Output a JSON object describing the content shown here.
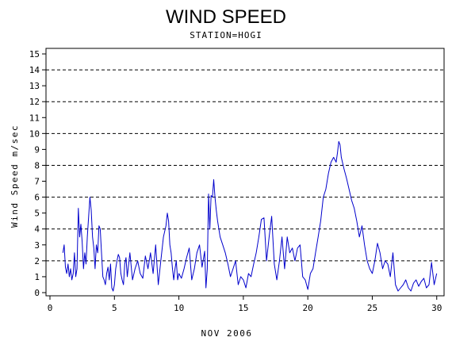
{
  "chart_data": {
    "type": "line",
    "title": "WIND SPEED",
    "subtitle": "STATION=HOGI",
    "xlabel": "NOV 2006",
    "ylabel": "Wind Speed m/sec",
    "xlim": [
      0,
      30.2
    ],
    "ylim": [
      0,
      15
    ],
    "x_ticks": [
      0,
      5,
      10,
      15,
      20,
      25,
      30
    ],
    "x_tick_labels": [
      "0",
      "5",
      "10",
      "15",
      "20",
      "25",
      "30"
    ],
    "y_ticks": [
      0,
      1,
      2,
      3,
      4,
      5,
      6,
      7,
      8,
      9,
      10,
      11,
      12,
      13,
      14,
      15
    ],
    "y_tick_labels": [
      "0",
      "1",
      "2",
      "3",
      "4",
      "5",
      "6",
      "7",
      "8",
      "9",
      "10",
      "11",
      "12",
      "13",
      "14",
      "15"
    ],
    "grid_lines_y": [
      2,
      4,
      6,
      8,
      10,
      12,
      14
    ],
    "grid": "dashed horizontal lines at even values",
    "series": [
      {
        "color": "#0000cc",
        "x": [
          1.0,
          1.1,
          1.2,
          1.3,
          1.4,
          1.5,
          1.6,
          1.7,
          1.8,
          1.9,
          2.0,
          2.1,
          2.2,
          2.3,
          2.4,
          2.5,
          2.6,
          2.7,
          2.8,
          2.9,
          3.0,
          3.1,
          3.2,
          3.3,
          3.4,
          3.5,
          3.6,
          3.7,
          3.8,
          3.9,
          4.0,
          4.1,
          4.2,
          4.3,
          4.4,
          4.5,
          4.6,
          4.7,
          4.8,
          4.9,
          5.0,
          5.1,
          5.2,
          5.3,
          5.4,
          5.5,
          5.6,
          5.7,
          5.8,
          5.9,
          6.0,
          6.2,
          6.4,
          6.6,
          6.8,
          7.0,
          7.2,
          7.4,
          7.6,
          7.8,
          8.0,
          8.2,
          8.4,
          8.6,
          8.8,
          9.0,
          9.1,
          9.2,
          9.3,
          9.4,
          9.5,
          9.6,
          9.7,
          9.8,
          9.9,
          10.0,
          10.2,
          10.4,
          10.6,
          10.8,
          11.0,
          11.2,
          11.4,
          11.6,
          11.8,
          12.0,
          12.1,
          12.2,
          12.3,
          12.4,
          12.5,
          12.6,
          12.7,
          12.8,
          12.9,
          13.0,
          13.2,
          13.4,
          13.6,
          13.8,
          14.0,
          14.2,
          14.4,
          14.6,
          14.8,
          15.0,
          15.2,
          15.4,
          15.6,
          15.8,
          16.0,
          16.2,
          16.4,
          16.6,
          16.8,
          17.0,
          17.2,
          17.4,
          17.6,
          17.8,
          18.0,
          18.2,
          18.4,
          18.6,
          18.8,
          19.0,
          19.2,
          19.4,
          19.6,
          19.8,
          20.0,
          20.2,
          20.4,
          20.6,
          20.8,
          21.0,
          21.2,
          21.4,
          21.6,
          21.8,
          22.0,
          22.2,
          22.3,
          22.4,
          22.5,
          22.6,
          22.8,
          23.0,
          23.2,
          23.4,
          23.6,
          23.8,
          24.0,
          24.2,
          24.4,
          24.6,
          24.8,
          25.0,
          25.2,
          25.4,
          25.6,
          25.8,
          26.0,
          26.2,
          26.4,
          26.6,
          26.8,
          27.0,
          27.2,
          27.4,
          27.6,
          27.8,
          28.0,
          28.2,
          28.4,
          28.6,
          28.8,
          29.0,
          29.2,
          29.4,
          29.6,
          29.8,
          30.0
        ],
        "values": [
          2.5,
          3.0,
          1.6,
          1.2,
          1.8,
          1.0,
          1.5,
          0.8,
          1.2,
          2.5,
          1.0,
          1.5,
          5.3,
          3.5,
          4.3,
          3.2,
          1.5,
          2.5,
          1.8,
          3.5,
          4.8,
          6.0,
          5.2,
          3.5,
          2.8,
          1.5,
          3.0,
          2.5,
          4.2,
          4.0,
          2.5,
          1.0,
          0.8,
          0.5,
          1.2,
          1.6,
          0.8,
          1.8,
          0.3,
          0.1,
          0.5,
          1.5,
          2.0,
          2.4,
          2.2,
          1.2,
          0.8,
          0.5,
          1.8,
          2.2,
          1.0,
          2.5,
          0.8,
          1.5,
          2.0,
          1.2,
          0.9,
          2.3,
          1.5,
          2.5,
          1.2,
          3.0,
          0.5,
          2.0,
          3.5,
          4.2,
          5.0,
          4.5,
          3.0,
          2.5,
          1.5,
          0.8,
          1.5,
          2.0,
          0.8,
          1.2,
          0.9,
          1.5,
          2.2,
          2.8,
          0.8,
          1.5,
          2.5,
          3.0,
          1.6,
          2.6,
          0.3,
          1.5,
          6.2,
          4.0,
          6.1,
          6.0,
          7.1,
          6.0,
          5.2,
          4.5,
          3.5,
          3.0,
          2.5,
          1.8,
          1.0,
          1.5,
          2.0,
          0.5,
          1.0,
          0.8,
          0.3,
          1.2,
          1.0,
          1.8,
          2.5,
          3.5,
          4.6,
          4.7,
          2.0,
          3.5,
          4.8,
          1.8,
          0.8,
          2.0,
          3.5,
          1.5,
          3.5,
          2.5,
          2.8,
          2.0,
          2.8,
          3.0,
          1.0,
          0.8,
          0.2,
          1.2,
          1.5,
          2.5,
          3.5,
          4.5,
          6.0,
          6.5,
          7.5,
          8.2,
          8.5,
          8.2,
          8.8,
          9.5,
          9.3,
          8.5,
          7.8,
          7.2,
          6.5,
          5.8,
          5.3,
          4.5,
          3.5,
          4.2,
          3.0,
          2.0,
          1.5,
          1.2,
          2.0,
          3.1,
          2.5,
          1.5,
          2.0,
          1.8,
          1.0,
          2.5,
          0.5,
          0.1,
          0.3,
          0.5,
          0.8,
          0.3,
          0.1,
          0.6,
          0.8,
          0.4,
          0.7,
          0.9,
          0.3,
          0.5,
          1.9,
          0.5,
          1.2
        ]
      }
    ]
  }
}
